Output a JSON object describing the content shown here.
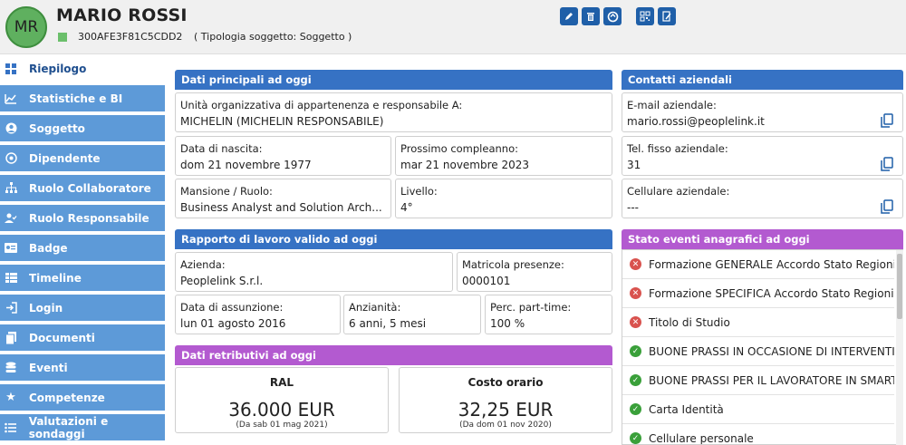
{
  "header": {
    "avatar_initials": "MR",
    "name": "MARIO ROSSI",
    "code": "300AFE3F81C5CDD2",
    "tipologia": "( Tipologia soggetto: Soggetto )",
    "actions": [
      "edit-icon",
      "trash-icon",
      "refresh-icon",
      "qr-icon",
      "document-edit-icon"
    ]
  },
  "sidebar": {
    "items": [
      {
        "label": "Riepilogo",
        "icon": "dashboard-icon"
      },
      {
        "label": "Statistiche e BI",
        "icon": "chart-icon"
      },
      {
        "label": "Soggetto",
        "icon": "user-circle-icon"
      },
      {
        "label": "Dipendente",
        "icon": "employee-icon"
      },
      {
        "label": "Ruolo Collaboratore",
        "icon": "org-chart-icon"
      },
      {
        "label": "Ruolo Responsabile",
        "icon": "user-check-icon"
      },
      {
        "label": "Badge",
        "icon": "badge-icon"
      },
      {
        "label": "Timeline",
        "icon": "timeline-icon"
      },
      {
        "label": "Login",
        "icon": "login-icon"
      },
      {
        "label": "Documenti",
        "icon": "documents-icon"
      },
      {
        "label": "Eventi",
        "icon": "events-icon"
      },
      {
        "label": "Competenze",
        "icon": "star-icon"
      },
      {
        "label": "Valutazioni e sondaggi",
        "icon": "list-icon"
      }
    ]
  },
  "dati_principali": {
    "title": "Dati principali ad oggi",
    "unita_label": "Unità organizzativa di appartenenza e responsabile A:",
    "unita_value": "MICHELIN (MICHELIN RESPONSABILE)",
    "nascita_label": "Data di nascita:",
    "nascita_value": "dom 21 novembre 1977",
    "compleanno_label": "Prossimo compleanno:",
    "compleanno_value": "mar 21 novembre 2023",
    "mansione_label": "Mansione / Ruolo:",
    "mansione_value": "Business Analyst and Solution Arch...",
    "livello_label": "Livello:",
    "livello_value": "4°"
  },
  "contatti": {
    "title": "Contatti aziendali",
    "email_label": "E-mail aziendale:",
    "email_value": "mario.rossi@peoplelink.it",
    "tel_label": "Tel. fisso aziendale:",
    "tel_value": "31",
    "cell_label": "Cellulare aziendale:",
    "cell_value": "---"
  },
  "rapporto": {
    "title": "Rapporto di lavoro valido ad oggi",
    "azienda_label": "Azienda:",
    "azienda_value": "Peoplelink S.r.l.",
    "matricola_label": "Matricola presenze:",
    "matricola_value": "0000101",
    "assunzione_label": "Data di assunzione:",
    "assunzione_value": "lun 01 agosto 2016",
    "anzianita_label": "Anzianità:",
    "anzianita_value": "6 anni, 5 mesi",
    "parttime_label": "Perc. part-time:",
    "parttime_value": "100 %"
  },
  "retributivi": {
    "title": "Dati retributivi ad oggi",
    "ral_label": "RAL",
    "ral_value": "36.000 EUR",
    "ral_since": "(Da sab 01 mag 2021)",
    "costo_label": "Costo orario",
    "costo_value": "32,25 EUR",
    "costo_since": "(Da dom 01 nov 2020)"
  },
  "eventi": {
    "title": "Stato eventi anagrafici ad oggi",
    "items": [
      {
        "label": "Formazione GENERALE Accordo Stato Regioni",
        "status": "bad"
      },
      {
        "label": "Formazione SPECIFICA Accordo Stato Regioni",
        "status": "bad"
      },
      {
        "label": "Titolo di Studio",
        "status": "bad"
      },
      {
        "label": "BUONE PRASSI IN OCCASIONE DI INTERVENTI",
        "status": "ok"
      },
      {
        "label": "BUONE PRASSI PER IL LAVORATORE IN SMART",
        "status": "ok"
      },
      {
        "label": "Carta Identità",
        "status": "ok"
      },
      {
        "label": "Cellulare personale",
        "status": "ok"
      }
    ]
  },
  "colors": {
    "sidebar": "#5d9ad8",
    "panel_blue": "#3672c4",
    "panel_purple": "#b35ad0",
    "status_bad": "#d9534f",
    "status_ok": "#3aa03a"
  }
}
